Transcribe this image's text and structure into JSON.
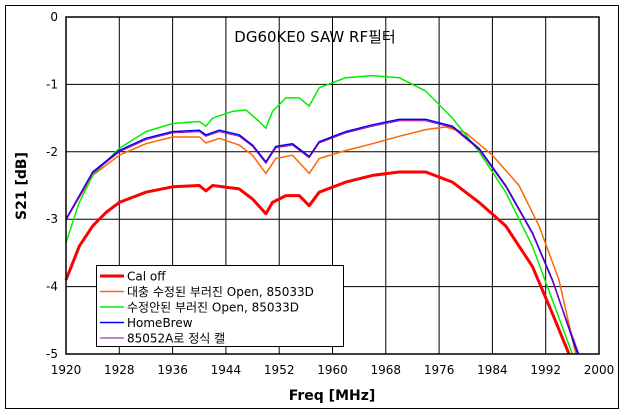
{
  "chart_data": {
    "type": "line",
    "title": "DG60KE0 SAW RF필터",
    "xlabel": "Freq [MHz]",
    "ylabel": "S21 [dB]",
    "xlim": [
      1920,
      2000
    ],
    "ylim": [
      -5,
      0
    ],
    "xticks": [
      1920,
      1928,
      1936,
      1944,
      1952,
      1960,
      1968,
      1976,
      1984,
      1992,
      2000
    ],
    "yticks": [
      0,
      -1,
      -2,
      -3,
      -4,
      -5
    ],
    "grid": true,
    "legend_position": "bottom-left",
    "series": [
      {
        "name": "Cal off",
        "color": "#ff0000",
        "width": 3,
        "x": [
          1920,
          1922,
          1924,
          1926,
          1928,
          1932,
          1936,
          1940,
          1941,
          1942,
          1946,
          1948,
          1950,
          1951,
          1953,
          1955,
          1956.5,
          1958,
          1962,
          1966,
          1970,
          1974,
          1978,
          1982,
          1986,
          1990,
          1993,
          1995.5
        ],
        "y": [
          -3.9,
          -3.4,
          -3.1,
          -2.9,
          -2.75,
          -2.6,
          -2.52,
          -2.5,
          -2.58,
          -2.5,
          -2.55,
          -2.7,
          -2.92,
          -2.75,
          -2.65,
          -2.65,
          -2.8,
          -2.6,
          -2.45,
          -2.35,
          -2.3,
          -2.3,
          -2.45,
          -2.75,
          -3.1,
          -3.7,
          -4.4,
          -5
        ]
      },
      {
        "name": "대충 수정된 부러진 Open, 85033D",
        "color": "#ff6600",
        "width": 1.5,
        "x": [
          1920,
          1924,
          1928,
          1932,
          1936,
          1940,
          1941,
          1943,
          1946,
          1948,
          1950,
          1951.5,
          1954,
          1956.5,
          1958,
          1962,
          1966,
          1970,
          1974,
          1977,
          1980,
          1984,
          1988,
          1991,
          1994,
          1996.5
        ],
        "y": [
          -3.0,
          -2.35,
          -2.05,
          -1.88,
          -1.78,
          -1.78,
          -1.87,
          -1.8,
          -1.9,
          -2.05,
          -2.32,
          -2.1,
          -2.05,
          -2.32,
          -2.1,
          -1.98,
          -1.88,
          -1.77,
          -1.67,
          -1.63,
          -1.72,
          -2.05,
          -2.5,
          -3.1,
          -3.9,
          -5
        ]
      },
      {
        "name": "수정안된 부러진 Open, 85033D",
        "color": "#00ee00",
        "width": 1.5,
        "x": [
          1920,
          1922,
          1924,
          1928,
          1932,
          1936,
          1940,
          1941,
          1942,
          1945,
          1947,
          1949,
          1950,
          1951,
          1953,
          1955,
          1956.5,
          1958,
          1962,
          1966,
          1970,
          1974,
          1978,
          1982,
          1986,
          1990,
          1993,
          1996
        ],
        "y": [
          -3.35,
          -2.75,
          -2.35,
          -1.95,
          -1.7,
          -1.58,
          -1.55,
          -1.62,
          -1.5,
          -1.4,
          -1.38,
          -1.55,
          -1.65,
          -1.4,
          -1.2,
          -1.2,
          -1.32,
          -1.05,
          -0.9,
          -0.87,
          -0.9,
          -1.1,
          -1.5,
          -2.0,
          -2.6,
          -3.4,
          -4.2,
          -5
        ]
      },
      {
        "name": "HomeBrew",
        "color": "#0000ff",
        "width": 1.5,
        "x": [
          1920,
          1924,
          1928,
          1932,
          1936,
          1940,
          1941,
          1943,
          1946,
          1948,
          1950,
          1951.5,
          1954,
          1956.5,
          1958,
          1962,
          1966,
          1970,
          1974,
          1978,
          1982,
          1986,
          1990,
          1993,
          1996.8
        ],
        "y": [
          -3.0,
          -2.3,
          -1.98,
          -1.8,
          -1.7,
          -1.68,
          -1.75,
          -1.68,
          -1.75,
          -1.9,
          -2.15,
          -1.92,
          -1.88,
          -2.07,
          -1.85,
          -1.7,
          -1.6,
          -1.52,
          -1.52,
          -1.62,
          -1.95,
          -2.5,
          -3.2,
          -3.9,
          -5
        ]
      },
      {
        "name": "85052A로 정식 캘",
        "color": "#990099",
        "width": 1,
        "x": [
          1920,
          1924,
          1928,
          1932,
          1936,
          1940,
          1941,
          1943,
          1946,
          1948,
          1950,
          1951.5,
          1954,
          1956.5,
          1958,
          1962,
          1966,
          1970,
          1974,
          1978,
          1982,
          1986,
          1990,
          1993,
          1997
        ],
        "y": [
          -3.02,
          -2.32,
          -2.0,
          -1.82,
          -1.72,
          -1.7,
          -1.77,
          -1.7,
          -1.77,
          -1.92,
          -2.17,
          -1.94,
          -1.9,
          -2.09,
          -1.87,
          -1.72,
          -1.62,
          -1.54,
          -1.54,
          -1.64,
          -1.97,
          -2.52,
          -3.22,
          -3.92,
          -5
        ]
      }
    ]
  }
}
